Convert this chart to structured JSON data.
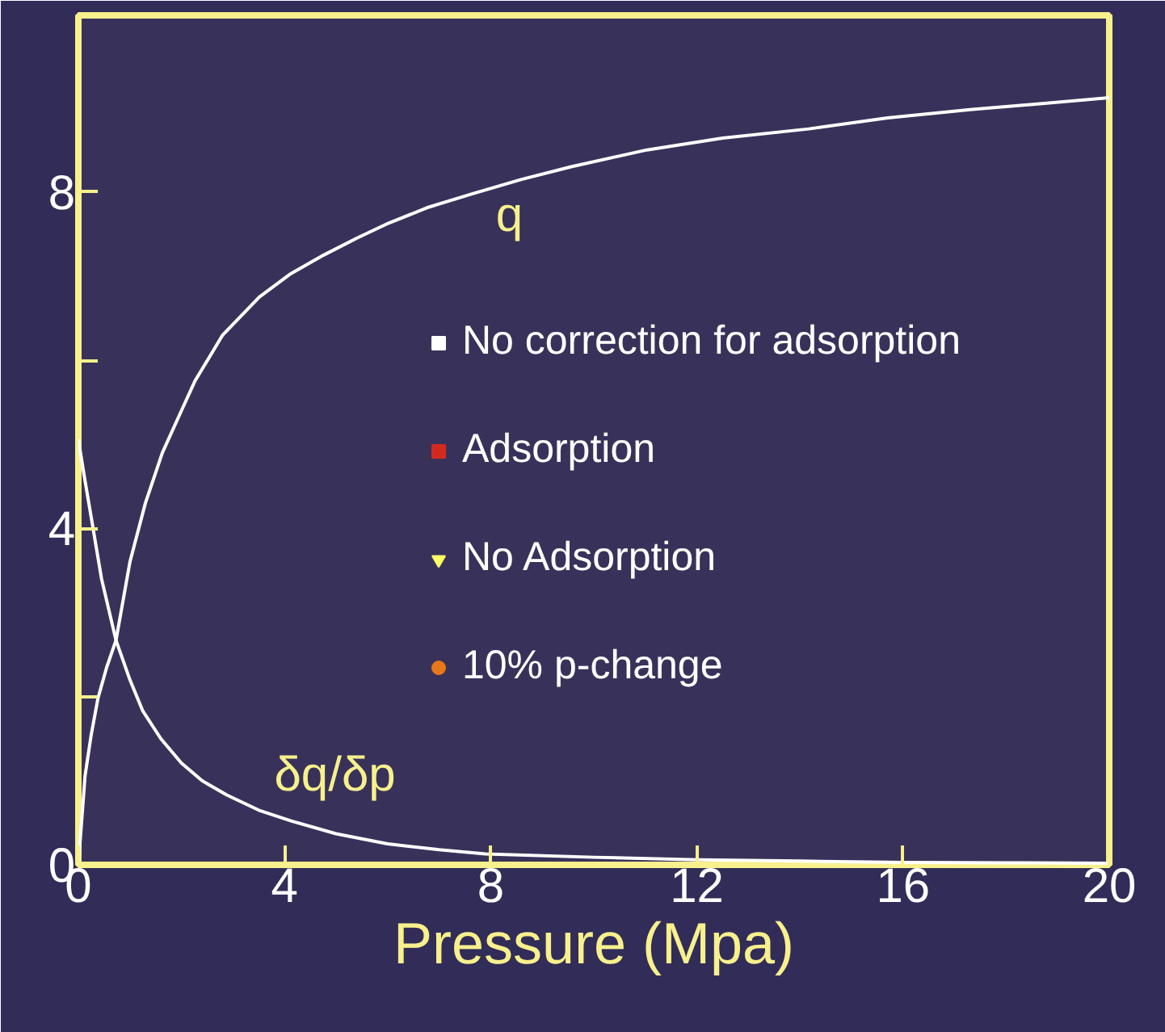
{
  "chart_data": {
    "type": "line",
    "xlabel": "Pressure (Mpa)",
    "xlim": [
      0,
      20
    ],
    "xticks": [
      0,
      4,
      8,
      12,
      16,
      20
    ],
    "ylim": [
      0,
      10.1
    ],
    "yticks": [
      0,
      {
        "value": 2,
        "label": null
      },
      4,
      {
        "value": 6,
        "label": null
      },
      8
    ],
    "grid": false,
    "legend": "right",
    "line_style": "solid",
    "series": [
      {
        "name": "q",
        "color": "#ffffff",
        "x": [
          0,
          0.13,
          0.25,
          0.38,
          0.55,
          0.73,
          1.0,
          1.3,
          1.63,
          2.0,
          2.26,
          2.8,
          3.51,
          4.1,
          4.76,
          5.4,
          6.02,
          6.8,
          7.65,
          8.6,
          9.56,
          11.03,
          12.5,
          14.17,
          15.7,
          17.3,
          18.7,
          20
        ],
        "values": [
          0,
          1.06,
          1.55,
          1.98,
          2.35,
          2.67,
          3.6,
          4.3,
          4.9,
          5.4,
          5.75,
          6.3,
          6.75,
          7.02,
          7.25,
          7.45,
          7.63,
          7.82,
          7.98,
          8.15,
          8.3,
          8.5,
          8.64,
          8.75,
          8.88,
          8.98,
          9.05,
          9.12
        ]
      },
      {
        "name": "δq/δp",
        "color": "#ffffff",
        "x": [
          0,
          0.12,
          0.25,
          0.45,
          0.73,
          1.0,
          1.25,
          1.6,
          2.0,
          2.4,
          2.88,
          3.5,
          4.14,
          5.0,
          6.0,
          7.0,
          7.9,
          10,
          12,
          14,
          16,
          18,
          20
        ],
        "values": [
          5.06,
          4.6,
          4.13,
          3.4,
          2.67,
          2.2,
          1.83,
          1.5,
          1.21,
          1.0,
          0.83,
          0.65,
          0.52,
          0.37,
          0.25,
          0.18,
          0.13,
          0.09,
          0.06,
          0.045,
          0.03,
          0.025,
          0.02
        ]
      },
      {
        "name": "No correction for adsorption",
        "type": "scatter",
        "marker": "square",
        "color": "#ffffff"
      },
      {
        "name": "Adsorption",
        "type": "scatter",
        "marker": "square",
        "color": "#d42a1e"
      },
      {
        "name": "No Adsorption",
        "type": "scatter",
        "marker": "triangle",
        "color": "#ffff66"
      },
      {
        "name": "10% p-change",
        "type": "scatter",
        "marker": "circle",
        "color": "#e8781a"
      }
    ]
  }
}
